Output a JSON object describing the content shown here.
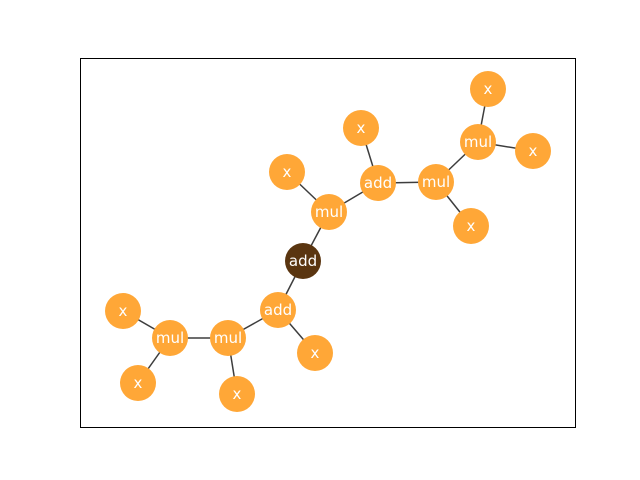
{
  "colors": {
    "root_fill": "#5a3510",
    "node_fill": "#ffa737",
    "edge": "#3d3d3d",
    "label": "#ffffff",
    "frame": "#000000"
  },
  "nodes": [
    {
      "id": "n0",
      "label": "add",
      "root": true
    },
    {
      "id": "n1",
      "label": "mul"
    },
    {
      "id": "n2",
      "label": "x"
    },
    {
      "id": "n3",
      "label": "add"
    },
    {
      "id": "n4",
      "label": "x"
    },
    {
      "id": "n5",
      "label": "mul"
    },
    {
      "id": "n6",
      "label": "x"
    },
    {
      "id": "n7",
      "label": "mul"
    },
    {
      "id": "n8",
      "label": "x"
    },
    {
      "id": "n9",
      "label": "x"
    },
    {
      "id": "n10",
      "label": "add"
    },
    {
      "id": "n11",
      "label": "x"
    },
    {
      "id": "n12",
      "label": "mul"
    },
    {
      "id": "n13",
      "label": "x"
    },
    {
      "id": "n14",
      "label": "mul"
    },
    {
      "id": "n15",
      "label": "x"
    },
    {
      "id": "n16",
      "label": "x"
    }
  ],
  "edges": [
    [
      "n0",
      "n1"
    ],
    [
      "n1",
      "n2"
    ],
    [
      "n1",
      "n3"
    ],
    [
      "n3",
      "n4"
    ],
    [
      "n3",
      "n5"
    ],
    [
      "n5",
      "n6"
    ],
    [
      "n5",
      "n7"
    ],
    [
      "n7",
      "n8"
    ],
    [
      "n7",
      "n9"
    ],
    [
      "n0",
      "n10"
    ],
    [
      "n10",
      "n11"
    ],
    [
      "n10",
      "n12"
    ],
    [
      "n12",
      "n13"
    ],
    [
      "n12",
      "n14"
    ],
    [
      "n14",
      "n15"
    ],
    [
      "n14",
      "n16"
    ]
  ]
}
